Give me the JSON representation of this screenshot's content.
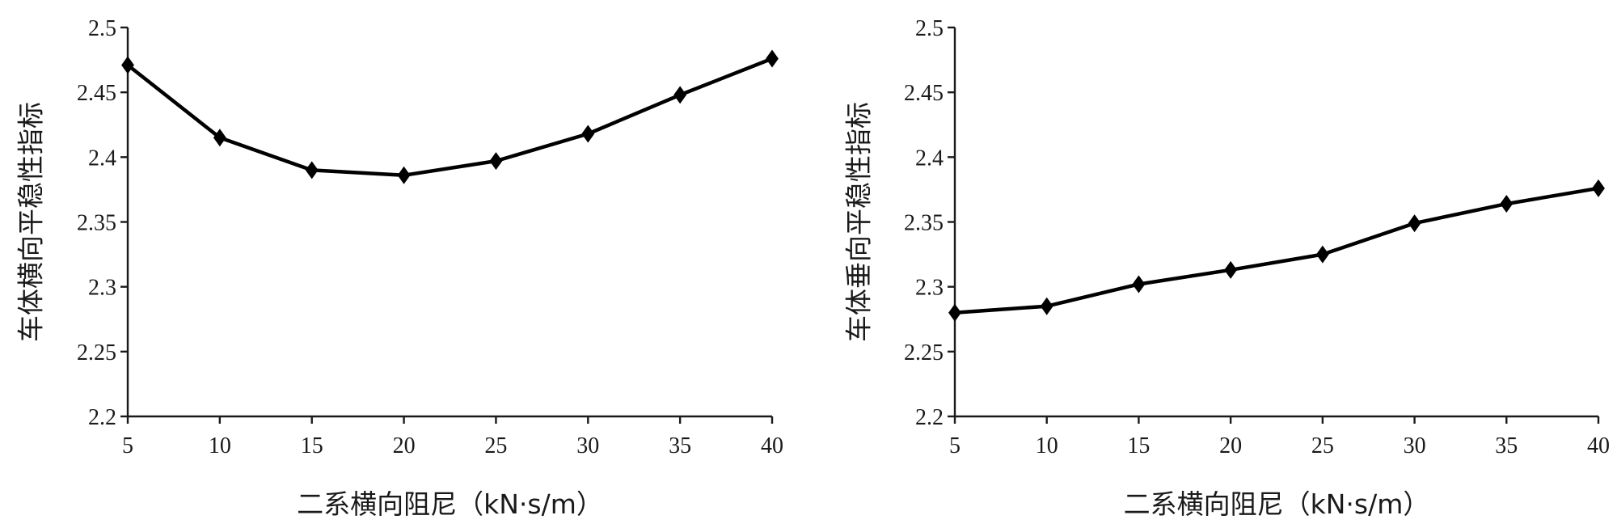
{
  "chart_data": [
    {
      "type": "line",
      "title": "",
      "xlabel": "二系横向阻尼（kN·s/m）",
      "ylabel": "车体横向平稳性指标",
      "x": [
        5,
        10,
        15,
        20,
        25,
        30,
        35,
        40
      ],
      "xticks": [
        "5",
        "10",
        "15",
        "20",
        "25",
        "30",
        "35",
        "40"
      ],
      "yticks": [
        "2.2",
        "2.25",
        "2.3",
        "2.35",
        "2.4",
        "2.45",
        "2.5"
      ],
      "ylim": [
        2.2,
        2.5
      ],
      "grid": false,
      "marker": "diamond",
      "series": [
        {
          "values": [
            2.471,
            2.415,
            2.39,
            2.386,
            2.397,
            2.418,
            2.448,
            2.476
          ]
        }
      ]
    },
    {
      "type": "line",
      "title": "",
      "xlabel": "二系横向阻尼（kN·s/m）",
      "ylabel": "车体垂向平稳性指标",
      "x": [
        5,
        10,
        15,
        20,
        25,
        30,
        35,
        40
      ],
      "xticks": [
        "5",
        "10",
        "15",
        "20",
        "25",
        "30",
        "35",
        "40"
      ],
      "yticks": [
        "2.2",
        "2.25",
        "2.3",
        "2.35",
        "2.4",
        "2.45",
        "2.5"
      ],
      "ylim": [
        2.2,
        2.5
      ],
      "grid": false,
      "marker": "diamond",
      "series": [
        {
          "values": [
            2.28,
            2.285,
            2.302,
            2.313,
            2.325,
            2.349,
            2.364,
            2.376
          ]
        }
      ]
    }
  ]
}
